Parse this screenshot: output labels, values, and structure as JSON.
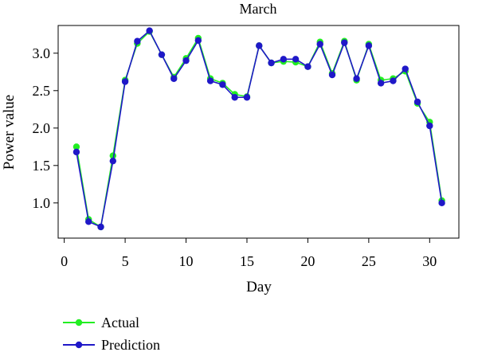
{
  "chart_data": {
    "type": "line",
    "title": "March",
    "xlabel": "Day",
    "ylabel": "Power value",
    "xlim": [
      -0.5,
      32.4
    ],
    "ylim": [
      0.53,
      3.37
    ],
    "xticks": [
      0,
      5,
      10,
      15,
      20,
      25,
      30
    ],
    "yticks": [
      1.0,
      1.5,
      2.0,
      2.5,
      3.0
    ],
    "grid": false,
    "legend_position": "bottom-left",
    "x": [
      1,
      2,
      3,
      4,
      5,
      6,
      7,
      8,
      9,
      10,
      11,
      12,
      13,
      14,
      15,
      16,
      17,
      18,
      19,
      20,
      21,
      22,
      23,
      24,
      25,
      26,
      27,
      28,
      29,
      30,
      31
    ],
    "series": [
      {
        "name": "Actual",
        "color": "#22ee22",
        "values": [
          1.75,
          0.78,
          0.68,
          1.63,
          2.64,
          3.13,
          3.29,
          2.98,
          2.68,
          2.93,
          3.2,
          2.66,
          2.6,
          2.45,
          2.42,
          3.1,
          2.87,
          2.89,
          2.88,
          2.82,
          3.15,
          2.73,
          3.16,
          2.64,
          3.12,
          2.64,
          2.66,
          2.76,
          2.33,
          2.08,
          1.03
        ]
      },
      {
        "name": "Prediction",
        "color": "#1f18c8",
        "values": [
          1.68,
          0.75,
          0.68,
          1.56,
          2.62,
          3.16,
          3.3,
          2.98,
          2.66,
          2.9,
          3.17,
          2.63,
          2.58,
          2.41,
          2.41,
          3.1,
          2.87,
          2.92,
          2.92,
          2.82,
          3.12,
          2.71,
          3.14,
          2.66,
          3.1,
          2.6,
          2.63,
          2.79,
          2.35,
          2.03,
          1.0
        ]
      }
    ]
  }
}
